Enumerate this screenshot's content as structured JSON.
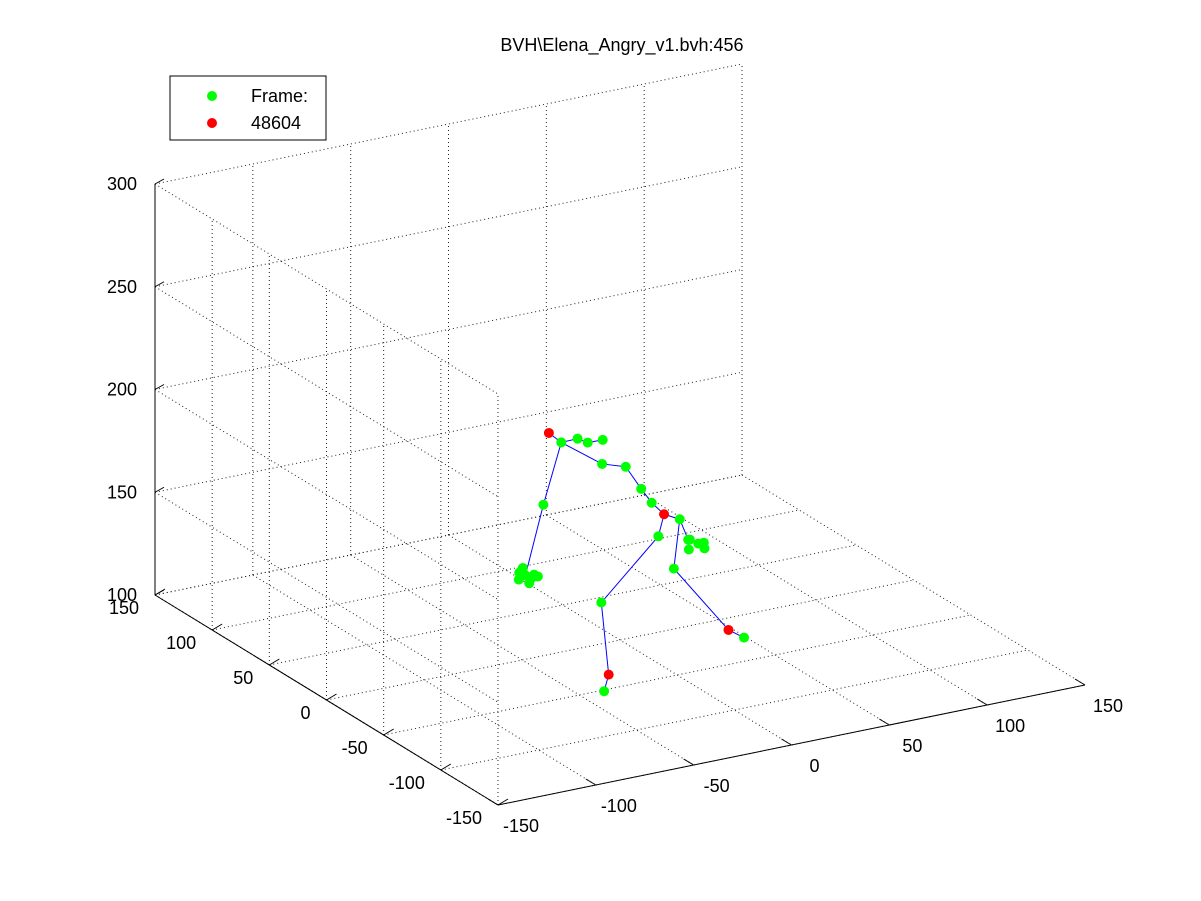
{
  "chart_data": {
    "type": "scatter",
    "title": "BVH\\Elena_Angry_v1.bvh:456",
    "xlim": [
      -150,
      150
    ],
    "ylim": [
      -150,
      150
    ],
    "zlim": [
      100,
      300
    ],
    "x_ticks": [
      "-150",
      "-100",
      "-50",
      "0",
      "50",
      "100",
      "150"
    ],
    "y_ticks": [
      "-150",
      "-100",
      "-50",
      "0",
      "50",
      "100",
      "150"
    ],
    "z_ticks": [
      "100",
      "150",
      "200",
      "250",
      "300"
    ],
    "grid": true,
    "legend_position": "top-left",
    "legend": [
      {
        "label": "Frame:",
        "color": "#00ff00"
      },
      {
        "label": "48604",
        "color": "#ff0000"
      }
    ],
    "bone_color": "#0000ff",
    "joints": [
      {
        "x": -60,
        "y": -20,
        "z": 150,
        "color": "#00ff00"
      },
      {
        "x": -58,
        "y": -22,
        "z": 149,
        "color": "#00ff00"
      },
      {
        "x": -62,
        "y": -18,
        "z": 151,
        "color": "#00ff00"
      },
      {
        "x": -56,
        "y": -24,
        "z": 150,
        "color": "#00ff00"
      },
      {
        "x": -59,
        "y": -16,
        "z": 152,
        "color": "#00ff00"
      },
      {
        "x": -61,
        "y": -25,
        "z": 148,
        "color": "#00ff00"
      },
      {
        "x": -64,
        "y": -21,
        "z": 149,
        "color": "#00ff00"
      },
      {
        "x": -55,
        "y": -19,
        "z": 149,
        "color": "#00ff00"
      },
      {
        "x": -45,
        "y": -10,
        "z": 178,
        "color": "#00ff00"
      },
      {
        "x": -30,
        "y": 0,
        "z": 202,
        "color": "#00ff00"
      },
      {
        "x": -34,
        "y": 4,
        "z": 206,
        "color": "#ff0000"
      },
      {
        "x": -24,
        "y": -4,
        "z": 204,
        "color": "#00ff00"
      },
      {
        "x": -20,
        "y": -6,
        "z": 202,
        "color": "#00ff00"
      },
      {
        "x": -10,
        "y": -2,
        "z": 200,
        "color": "#00ff00"
      },
      {
        "x": -15,
        "y": -10,
        "z": 192,
        "color": "#00ff00"
      },
      {
        "x": 0,
        "y": -5,
        "z": 186,
        "color": "#00ff00"
      },
      {
        "x": 5,
        "y": -10,
        "z": 176,
        "color": "#00ff00"
      },
      {
        "x": 8,
        "y": -14,
        "z": 170,
        "color": "#00ff00"
      },
      {
        "x": 12,
        "y": -18,
        "z": 165,
        "color": "#ff0000"
      },
      {
        "x": 20,
        "y": -18,
        "z": 161,
        "color": "#00ff00"
      },
      {
        "x": 5,
        "y": -25,
        "z": 158,
        "color": "#00ff00"
      },
      {
        "x": 22,
        "y": -22,
        "z": 152,
        "color": "#00ff00"
      },
      {
        "x": 26,
        "y": -24,
        "z": 150,
        "color": "#00ff00"
      },
      {
        "x": 24,
        "y": -20,
        "z": 151,
        "color": "#00ff00"
      },
      {
        "x": 28,
        "y": -26,
        "z": 148,
        "color": "#00ff00"
      },
      {
        "x": 20,
        "y": -26,
        "z": 149,
        "color": "#00ff00"
      },
      {
        "x": 30,
        "y": -22,
        "z": 149,
        "color": "#00ff00"
      },
      {
        "x": 10,
        "y": -30,
        "z": 143,
        "color": "#00ff00"
      },
      {
        "x": -30,
        "y": -35,
        "z": 136,
        "color": "#00ff00"
      },
      {
        "x": -35,
        "y": -50,
        "z": 107,
        "color": "#ff0000"
      },
      {
        "x": -42,
        "y": -58,
        "z": 103,
        "color": "#00ff00"
      },
      {
        "x": 35,
        "y": -35,
        "z": 110,
        "color": "#ff0000"
      },
      {
        "x": 40,
        "y": -40,
        "z": 107,
        "color": "#00ff00"
      }
    ]
  }
}
